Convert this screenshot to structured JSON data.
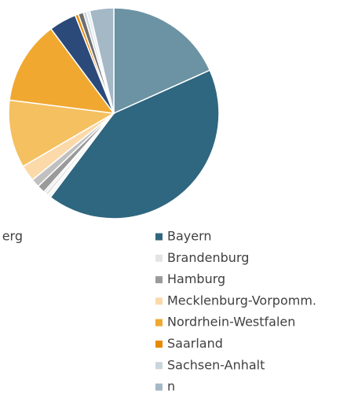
{
  "chart_data": {
    "type": "pie",
    "categories": [
      "erg",
      "Bayern",
      null,
      "Brandenburg",
      null,
      "Hamburg",
      null,
      "Mecklenburg-Vorpomm.",
      null,
      "Nordrhein-Westfalen",
      null,
      "Saarland",
      null,
      "Sachsen-Anhalt",
      null,
      "n"
    ],
    "values": [
      18.3,
      42,
      0.5,
      0.5,
      0.3,
      1.2,
      1.3,
      2.5,
      10.4,
      12.8,
      4.2,
      0.5,
      0.8,
      0.5,
      0.5,
      3.7
    ],
    "colors": [
      "#6b93a3",
      "#2f6680",
      "#f6f6f6",
      "#e4e4e4",
      "#d8d8d8",
      "#9a9a9a",
      "#c0c0c0",
      "#fbd9a8",
      "#f4c060",
      "#f0a830",
      "#2b4a7a",
      "#e88a00",
      "#6e6e6e",
      "#c9d6de",
      "#e6ecf0",
      "#a4b8c6"
    ]
  }
}
